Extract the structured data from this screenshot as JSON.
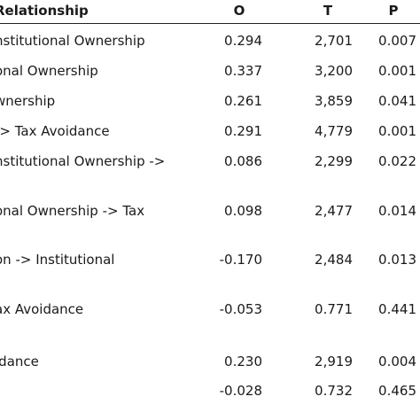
{
  "header": {
    "relationship": "Relationship",
    "o": "O",
    "t": "T",
    "p": "P"
  },
  "rows": [
    {
      "relationship": "nstitutional Ownership",
      "o": "0.294",
      "t": "2,701",
      "p": "0.007"
    },
    {
      "relationship": "onal Ownership",
      "o": "0.337",
      "t": "3,200",
      "p": "0.001"
    },
    {
      "relationship": "wnership",
      "o": "0.261",
      "t": "3,859",
      "p": "0.041"
    },
    {
      "relationship": " -> Tax Avoidance",
      "o": "0.291",
      "t": "4,779",
      "p": "0.001"
    },
    {
      "relationship": "nstitutional Ownership ->",
      "o": "0.086",
      "t": "2,299",
      "p": "0.022"
    },
    {
      "relationship": "onal Ownership -> Tax",
      "o": "0.098",
      "t": "2,477",
      "p": "0.014"
    },
    {
      "relationship": "on -> Institutional",
      "o": "-0.170",
      "t": "2,484",
      "p": "0.013"
    },
    {
      "relationship": "ax Avoidance",
      "o": "-0.053",
      "t": "0.771",
      "p": "0.441"
    },
    {
      "relationship": "idance",
      "o": "0.230",
      "t": "2,919",
      "p": "0.004"
    },
    {
      "relationship": "",
      "o": "-0.028",
      "t": "0.732",
      "p": "0.465"
    }
  ]
}
